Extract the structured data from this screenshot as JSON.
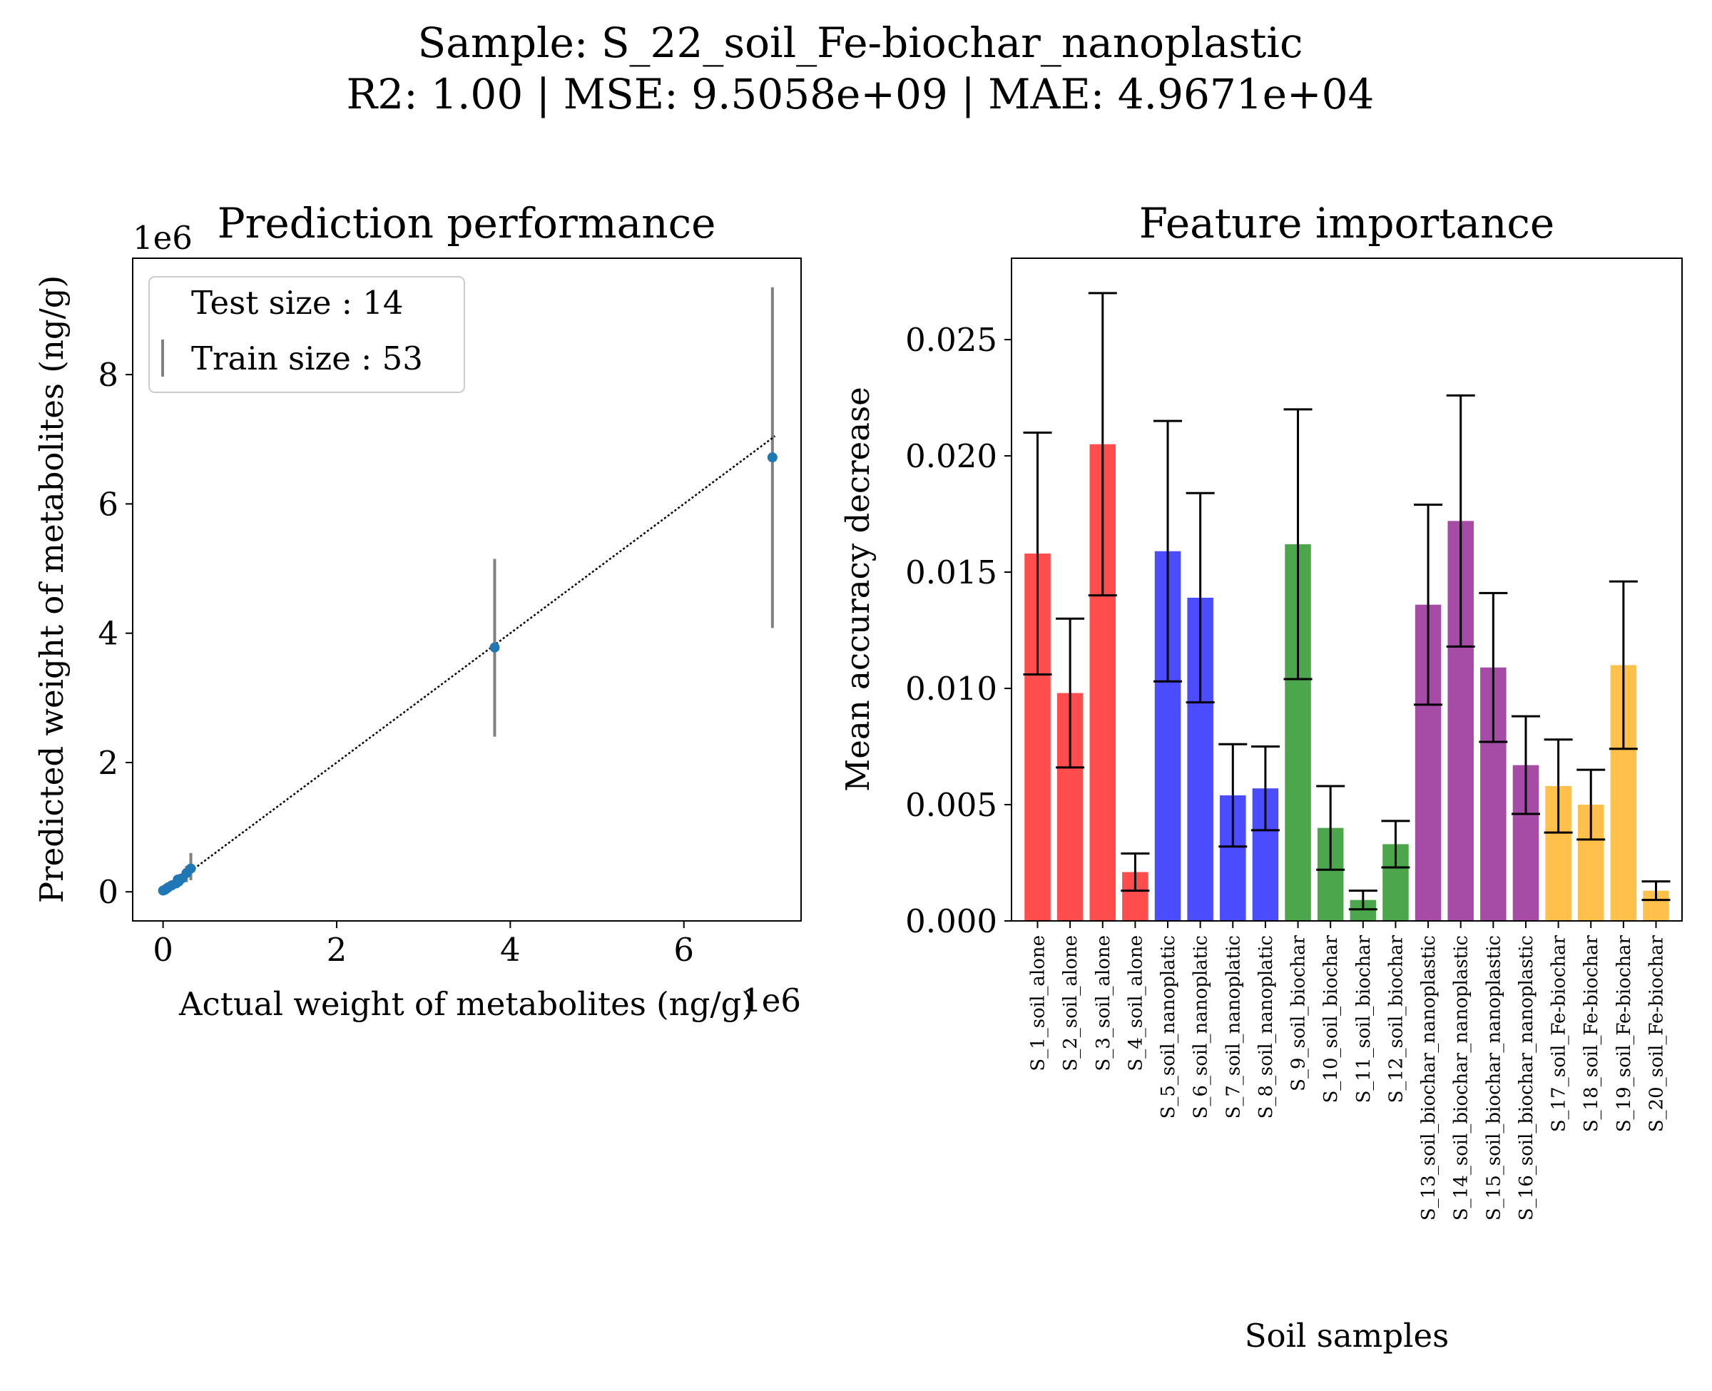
{
  "figure": {
    "suptitle_line1": "Sample: S_22_soil_Fe-biochar_nanoplastic",
    "suptitle_line2": "R2: 1.00 | MSE: 9.5058e+09 | MAE: 4.9671e+04"
  },
  "chart_data": [
    {
      "type": "scatter",
      "title": "Prediction performance",
      "xlabel": "Actual weight of metabolites (ng/g)",
      "ylabel": "Predicted weight of metabolites (ng/g)",
      "x_offset_label": "1e6",
      "y_offset_label": "1e6",
      "xlim": [
        -0.35,
        7.35
      ],
      "ylim": [
        -0.45,
        9.8
      ],
      "x_ticks": [
        0,
        2,
        4,
        6
      ],
      "y_ticks": [
        0,
        2,
        4,
        6,
        8
      ],
      "legend": {
        "placement": "upper-left",
        "entries": [
          "Test size : 14",
          "Train size : 53"
        ]
      },
      "identity_line": {
        "x": [
          0,
          7.05
        ],
        "y": [
          0,
          7.05
        ]
      },
      "points": [
        {
          "x": 0.0,
          "y": 0.02,
          "err_low": 0.0,
          "err_high": 0.05
        },
        {
          "x": 0.02,
          "y": 0.03,
          "err_low": 0.0,
          "err_high": 0.07
        },
        {
          "x": 0.04,
          "y": 0.05,
          "err_low": 0.02,
          "err_high": 0.09
        },
        {
          "x": 0.06,
          "y": 0.07,
          "err_low": 0.04,
          "err_high": 0.1
        },
        {
          "x": 0.1,
          "y": 0.1,
          "err_low": 0.07,
          "err_high": 0.14
        },
        {
          "x": 0.15,
          "y": 0.13,
          "err_low": 0.09,
          "err_high": 0.18
        },
        {
          "x": 0.17,
          "y": 0.19,
          "err_low": 0.12,
          "err_high": 0.25
        },
        {
          "x": 0.18,
          "y": 0.16,
          "err_low": 0.1,
          "err_high": 0.22
        },
        {
          "x": 0.2,
          "y": 0.2,
          "err_low": 0.13,
          "err_high": 0.27
        },
        {
          "x": 0.22,
          "y": 0.21,
          "err_low": 0.14,
          "err_high": 0.28
        },
        {
          "x": 0.27,
          "y": 0.29,
          "err_low": 0.15,
          "err_high": 0.4
        },
        {
          "x": 0.32,
          "y": 0.36,
          "err_low": 0.18,
          "err_high": 0.6
        },
        {
          "x": 3.82,
          "y": 3.78,
          "err_low": 2.4,
          "err_high": 5.15
        },
        {
          "x": 7.02,
          "y": 6.72,
          "err_low": 4.08,
          "err_high": 9.35
        }
      ],
      "colors": {
        "points": "#1f77b4",
        "errorbars": "#808080",
        "line": "#000000"
      }
    },
    {
      "type": "bar",
      "title": "Feature importance",
      "xlabel": "Soil samples",
      "ylabel": "Mean accuracy decrease",
      "ylim": [
        0,
        0.0285
      ],
      "y_ticks": [
        0.0,
        0.005,
        0.01,
        0.015,
        0.02,
        0.025
      ],
      "y_tick_labels": [
        "0.000",
        "0.005",
        "0.010",
        "0.015",
        "0.020",
        "0.025"
      ],
      "categories": [
        "S_1_soil_alone",
        "S_2_soil_alone",
        "S_3_soil_alone",
        "S_4_soil_alone",
        "S_5_soil_nanoplatic",
        "S_6_soil_nanoplatic",
        "S_7_soil_nanoplatic",
        "S_8_soil_nanoplatic",
        "S_9_soil_biochar",
        "S_10_soil_biochar",
        "S_11_soil_biochar",
        "S_12_soil_biochar",
        "S_13_soil_biochar_nanoplastic",
        "S_14_soil_biochar_nanoplastic",
        "S_15_soil_biochar_nanoplastic",
        "S_16_soil_biochar_nanoplastic",
        "S_17_soil_Fe-biochar",
        "S_18_soil_Fe-biochar",
        "S_19_soil_Fe-biochar",
        "S_20_soil_Fe-biochar"
      ],
      "values": [
        0.0158,
        0.0098,
        0.0205,
        0.0021,
        0.0159,
        0.0139,
        0.0054,
        0.0057,
        0.0162,
        0.004,
        0.0009,
        0.0033,
        0.0136,
        0.0172,
        0.0109,
        0.0067,
        0.0058,
        0.005,
        0.011,
        0.0013
      ],
      "errors": [
        0.0052,
        0.0032,
        0.0065,
        0.0008,
        0.0056,
        0.0045,
        0.0022,
        0.0018,
        0.0058,
        0.0018,
        0.0004,
        0.001,
        0.0043,
        0.0054,
        0.0032,
        0.0021,
        0.002,
        0.0015,
        0.0036,
        0.0004
      ],
      "bar_colors": [
        "#ff0000",
        "#ff0000",
        "#ff0000",
        "#ff0000",
        "#0000ff",
        "#0000ff",
        "#0000ff",
        "#0000ff",
        "#008000",
        "#008000",
        "#008000",
        "#008000",
        "#800080",
        "#800080",
        "#800080",
        "#800080",
        "#ffa500",
        "#ffa500",
        "#ffa500",
        "#ffa500"
      ],
      "bar_alpha": 0.7
    }
  ]
}
